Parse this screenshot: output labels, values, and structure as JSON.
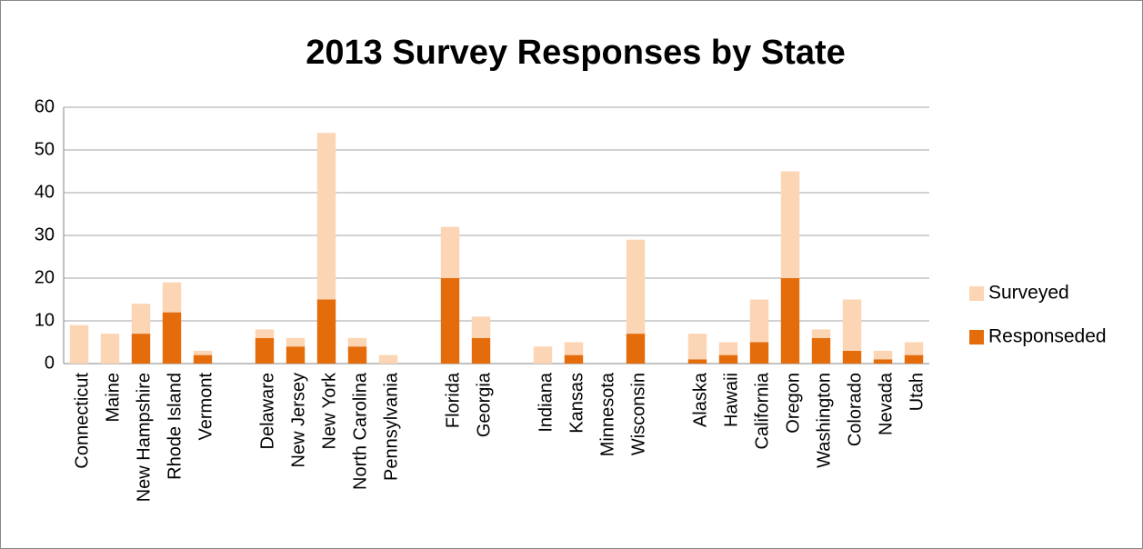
{
  "chart_data": {
    "type": "stacked_bar",
    "title": "2013 Survey Responses by State",
    "categories": [
      "Connecticut",
      "Maine",
      "New Hampshire",
      "Rhode Island",
      "Vermont",
      null,
      "Delaware",
      "New Jersey",
      "New York",
      "North Carolina",
      "Pennsylvania",
      null,
      "Florida",
      "Georgia",
      null,
      "Indiana",
      "Kansas",
      "Minnesota",
      "Wisconsin",
      null,
      "Alaska",
      "Hawaii",
      "California",
      "Oregon",
      "Washington",
      "Colorado",
      "Nevada",
      "Utah"
    ],
    "series": [
      {
        "name": "Responseded",
        "color": "#e46c0a",
        "values": [
          0,
          0,
          7,
          12,
          2,
          null,
          6,
          4,
          15,
          4,
          0,
          null,
          20,
          6,
          null,
          0,
          2,
          0,
          7,
          null,
          1,
          2,
          5,
          20,
          6,
          3,
          1,
          2
        ]
      },
      {
        "name": "Surveyed",
        "color": "#fcd5b5",
        "values": [
          9,
          7,
          7,
          7,
          1,
          null,
          2,
          2,
          39,
          2,
          2,
          null,
          12,
          5,
          null,
          4,
          3,
          0,
          22,
          null,
          6,
          3,
          10,
          25,
          2,
          12,
          2,
          3
        ]
      }
    ],
    "ylim": [
      0,
      60
    ],
    "yticks": [
      0,
      10,
      20,
      30,
      40,
      50,
      60
    ],
    "grid": true,
    "legend": "right"
  }
}
